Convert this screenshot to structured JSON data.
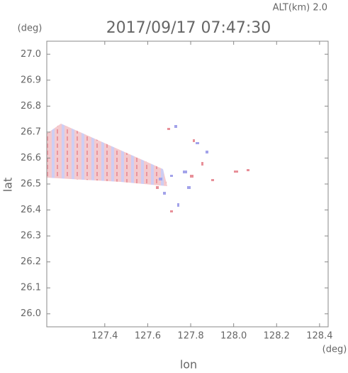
{
  "chart_data": {
    "type": "scatter",
    "title": "2017/09/17 07:47:30",
    "subtitle": "ALT(km) 2.0",
    "y_unit": "(deg)",
    "x_unit": "(deg)",
    "xlabel": "lon",
    "ylabel": "lat",
    "xlim": [
      127.13,
      128.44
    ],
    "ylim": [
      25.95,
      27.05
    ],
    "xticks": [
      127.4,
      127.6,
      127.8,
      {
        "value": 128,
        "label": "128.0"
      },
      128.2,
      128.4
    ],
    "yticks": [
      {
        "value": 26,
        "label": "26.0"
      },
      26.1,
      26.2,
      26.3,
      26.4,
      26.5,
      26.6,
      26.7,
      26.8,
      26.9,
      {
        "value": 27,
        "label": "27.0"
      }
    ]
  }
}
